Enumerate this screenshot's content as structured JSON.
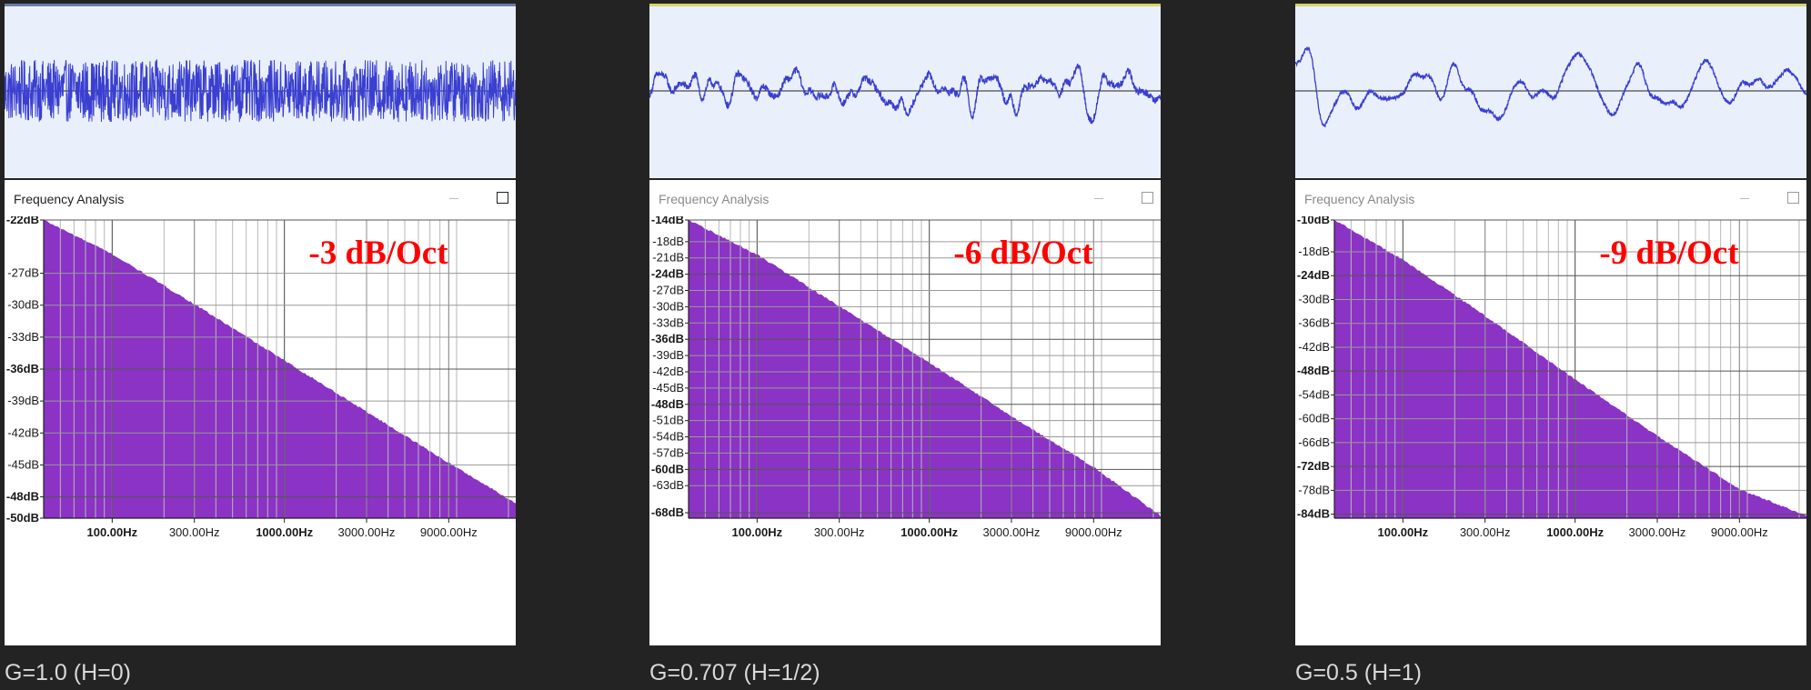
{
  "colors": {
    "background": "#232323",
    "waveform_bg": "#e9f0fc",
    "waveform_line": "#3a3fd0",
    "spectrum_fill": "#8a33c4",
    "annotation": "#ff0000",
    "active_top_border": "#6b7aa6",
    "inactive_top_border": "#d8d36a"
  },
  "panels": [
    {
      "caption": "G=1.0 (H=0)",
      "window_title": "Frequency Analysis",
      "window_active": true,
      "min_button_icon": "minimize-icon",
      "max_button_icon": "maximize-icon",
      "chart_data": {
        "type": "area",
        "title": "",
        "xlabel": "",
        "ylabel": "",
        "x_scale": "log",
        "xlim": [
          40,
          22050
        ],
        "ylim": [
          -50,
          -22
        ],
        "grid": true,
        "annotation": "-3 dB/Oct",
        "y_ticks": [
          {
            "label": "-22dB",
            "value": -22,
            "bold": true
          },
          {
            "label": "-27dB",
            "value": -27,
            "bold": false
          },
          {
            "label": "-30dB",
            "value": -30,
            "bold": false
          },
          {
            "label": "-33dB",
            "value": -33,
            "bold": false
          },
          {
            "label": "-36dB",
            "value": -36,
            "bold": true
          },
          {
            "label": "-39dB",
            "value": -39,
            "bold": false
          },
          {
            "label": "-42dB",
            "value": -42,
            "bold": false
          },
          {
            "label": "-45dB",
            "value": -45,
            "bold": false
          },
          {
            "label": "-48dB",
            "value": -48,
            "bold": true
          },
          {
            "label": "-50dB",
            "value": -50,
            "bold": true
          }
        ],
        "x_ticks": [
          {
            "label": "100.00Hz",
            "value": 100,
            "bold": true
          },
          {
            "label": "300.00Hz",
            "value": 300,
            "bold": false
          },
          {
            "label": "1000.00Hz",
            "value": 1000,
            "bold": true
          },
          {
            "label": "3000.00Hz",
            "value": 3000,
            "bold": false
          },
          {
            "label": "9000.00Hz",
            "value": 9000,
            "bold": false
          }
        ],
        "x": [
          40,
          100,
          300,
          1000,
          3000,
          9000,
          22050
        ],
        "values": [
          -22.0,
          -25.2,
          -29.9,
          -35.2,
          -40.0,
          -44.8,
          -48.6
        ]
      },
      "waveform": {
        "amplitude": 0.55,
        "smoothness": 0
      }
    },
    {
      "caption": "G=0.707 (H=1/2)",
      "window_title": "Frequency Analysis",
      "window_active": false,
      "min_button_icon": "minimize-icon",
      "max_button_icon": "maximize-icon",
      "chart_data": {
        "type": "area",
        "title": "",
        "xlabel": "",
        "ylabel": "",
        "x_scale": "log",
        "xlim": [
          40,
          22050
        ],
        "ylim": [
          -69,
          -14
        ],
        "grid": true,
        "annotation": "-6 dB/Oct",
        "y_ticks": [
          {
            "label": "-14dB",
            "value": -14,
            "bold": true
          },
          {
            "label": "-18dB",
            "value": -18,
            "bold": false
          },
          {
            "label": "-21dB",
            "value": -21,
            "bold": false
          },
          {
            "label": "-24dB",
            "value": -24,
            "bold": true
          },
          {
            "label": "-27dB",
            "value": -27,
            "bold": false
          },
          {
            "label": "-30dB",
            "value": -30,
            "bold": false
          },
          {
            "label": "-33dB",
            "value": -33,
            "bold": false
          },
          {
            "label": "-36dB",
            "value": -36,
            "bold": true
          },
          {
            "label": "-39dB",
            "value": -39,
            "bold": false
          },
          {
            "label": "-42dB",
            "value": -42,
            "bold": false
          },
          {
            "label": "-45dB",
            "value": -45,
            "bold": false
          },
          {
            "label": "-48dB",
            "value": -48,
            "bold": true
          },
          {
            "label": "-51dB",
            "value": -51,
            "bold": false
          },
          {
            "label": "-54dB",
            "value": -54,
            "bold": false
          },
          {
            "label": "-57dB",
            "value": -57,
            "bold": false
          },
          {
            "label": "-60dB",
            "value": -60,
            "bold": true
          },
          {
            "label": "-63dB",
            "value": -63,
            "bold": false
          },
          {
            "label": "-68dB",
            "value": -68,
            "bold": true
          }
        ],
        "x_ticks": [
          {
            "label": "100.00Hz",
            "value": 100,
            "bold": true
          },
          {
            "label": "300.00Hz",
            "value": 300,
            "bold": false
          },
          {
            "label": "1000.00Hz",
            "value": 1000,
            "bold": true
          },
          {
            "label": "3000.00Hz",
            "value": 3000,
            "bold": false
          },
          {
            "label": "9000.00Hz",
            "value": 9000,
            "bold": false
          }
        ],
        "x": [
          40,
          100,
          300,
          1000,
          3000,
          9000,
          22050
        ],
        "values": [
          -14.0,
          -20.4,
          -29.9,
          -40.3,
          -50.2,
          -59.6,
          -68.6
        ]
      },
      "waveform": {
        "amplitude": 0.7,
        "smoothness": 1
      }
    },
    {
      "caption": "G=0.5 (H=1)",
      "window_title": "Frequency Analysis",
      "window_active": false,
      "min_button_icon": "minimize-icon",
      "max_button_icon": "maximize-icon",
      "chart_data": {
        "type": "area",
        "title": "",
        "xlabel": "",
        "ylabel": "",
        "x_scale": "log",
        "xlim": [
          40,
          22050
        ],
        "ylim": [
          -85,
          -10
        ],
        "grid": true,
        "annotation": "-9 dB/Oct",
        "y_ticks": [
          {
            "label": "-10dB",
            "value": -10,
            "bold": true
          },
          {
            "label": "-18dB",
            "value": -18,
            "bold": false
          },
          {
            "label": "-24dB",
            "value": -24,
            "bold": true
          },
          {
            "label": "-30dB",
            "value": -30,
            "bold": false
          },
          {
            "label": "-36dB",
            "value": -36,
            "bold": false
          },
          {
            "label": "-42dB",
            "value": -42,
            "bold": false
          },
          {
            "label": "-48dB",
            "value": -48,
            "bold": true
          },
          {
            "label": "-54dB",
            "value": -54,
            "bold": false
          },
          {
            "label": "-60dB",
            "value": -60,
            "bold": false
          },
          {
            "label": "-66dB",
            "value": -66,
            "bold": false
          },
          {
            "label": "-72dB",
            "value": -72,
            "bold": true
          },
          {
            "label": "-78dB",
            "value": -78,
            "bold": false
          },
          {
            "label": "-84dB",
            "value": -84,
            "bold": true
          }
        ],
        "x_ticks": [
          {
            "label": "100.00Hz",
            "value": 100,
            "bold": true
          },
          {
            "label": "300.00Hz",
            "value": 300,
            "bold": false
          },
          {
            "label": "1000.00Hz",
            "value": 1000,
            "bold": true
          },
          {
            "label": "3000.00Hz",
            "value": 3000,
            "bold": false
          },
          {
            "label": "9000.00Hz",
            "value": 9000,
            "bold": false
          }
        ],
        "x": [
          40,
          100,
          300,
          1000,
          3000,
          9000,
          22050
        ],
        "values": [
          -10.0,
          -20.0,
          -34.1,
          -50.1,
          -64.3,
          -77.7,
          -84.4
        ]
      },
      "waveform": {
        "amplitude": 0.85,
        "smoothness": 2
      }
    }
  ]
}
